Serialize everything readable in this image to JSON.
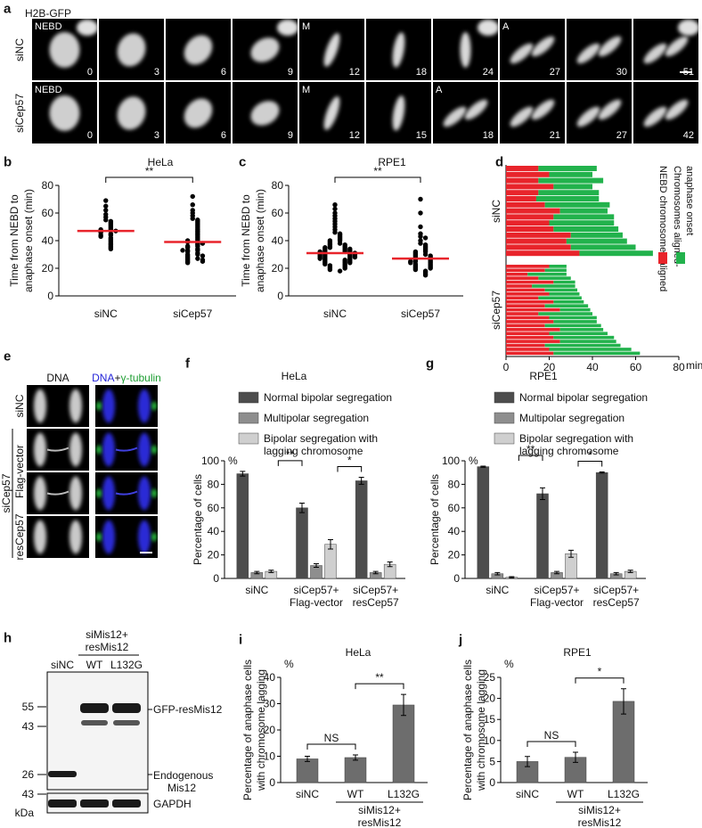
{
  "panel_a": {
    "label": "a",
    "marker": "H2B-GFP",
    "rows": [
      {
        "name": "siNC",
        "frames": [
          {
            "time": 0,
            "tag": "NEBD"
          },
          {
            "time": 3
          },
          {
            "time": 6
          },
          {
            "time": 9
          },
          {
            "time": 12,
            "tag": "M"
          },
          {
            "time": 18
          },
          {
            "time": 24
          },
          {
            "time": 27,
            "tag": "A"
          },
          {
            "time": 30
          },
          {
            "time": 51
          }
        ]
      },
      {
        "name": "siCep57",
        "frames": [
          {
            "time": 0,
            "tag": "NEBD"
          },
          {
            "time": 3
          },
          {
            "time": 6
          },
          {
            "time": 9
          },
          {
            "time": 12,
            "tag": "M"
          },
          {
            "time": 15
          },
          {
            "time": 18,
            "tag": "A"
          },
          {
            "time": 21
          },
          {
            "time": 27
          },
          {
            "time": 42
          }
        ]
      }
    ]
  },
  "panel_e": {
    "label": "e",
    "columns": {
      "dna": "DNA",
      "merge": [
        "DNA",
        "+",
        "γ-tubulin"
      ]
    },
    "rows": [
      "siNC",
      "Flag-vector",
      "resCep57"
    ],
    "group": "siCep57"
  },
  "panel_h": {
    "label": "h",
    "treatment": [
      "siMis12+",
      "resMis12"
    ],
    "lanes": [
      "siNC",
      "WT",
      "L132G"
    ],
    "markers": [
      55,
      43,
      26,
      43
    ],
    "unit": "kDa",
    "bands": [
      "GFP-resMis12",
      [
        "Endogenous",
        "Mis12"
      ],
      "GAPDH"
    ]
  },
  "chart_data": [
    {
      "panel": "b",
      "type": "strip",
      "title": "HeLa",
      "ylabel": [
        "Time from NEBD to",
        "anaphase onset (min)"
      ],
      "categories": [
        "siNC",
        "siCep57"
      ],
      "color": "#000000",
      "mean_color": "#e8242b",
      "values": [
        [
          69,
          65,
          62,
          59,
          57,
          55,
          54,
          53,
          52,
          51,
          50,
          49,
          48,
          48,
          47,
          47,
          46,
          45,
          44,
          44,
          43,
          42,
          41,
          40,
          39,
          38,
          37,
          36,
          35,
          34
        ],
        [
          72,
          66,
          62,
          60,
          58,
          56,
          55,
          54,
          53,
          52,
          51,
          50,
          49,
          48,
          47,
          46,
          45,
          44,
          43,
          42,
          41,
          40,
          40,
          39,
          38,
          37,
          36,
          36,
          35,
          34,
          33,
          33,
          32,
          31,
          30,
          30,
          29,
          29,
          28,
          27,
          27,
          26,
          26,
          25,
          25,
          24,
          33,
          38
        ]
      ],
      "means": [
        47,
        39
      ],
      "ylim": [
        0,
        80
      ],
      "yticks": [
        0,
        20,
        40,
        60,
        80
      ],
      "annotations": [
        {
          "text": "**"
        }
      ]
    },
    {
      "panel": "c",
      "type": "strip",
      "title": "RPE1",
      "ylabel": [
        "Time from NEBD to",
        "anaphase onset (min)"
      ],
      "categories": [
        "siNC",
        "siCep57"
      ],
      "color": "#000000",
      "mean_color": "#e8242b",
      "values": [
        [
          66,
          63,
          60,
          58,
          56,
          54,
          52,
          50,
          48,
          46,
          45,
          44,
          43,
          42,
          41,
          40,
          40,
          39,
          38,
          38,
          37,
          37,
          36,
          36,
          35,
          35,
          35,
          34,
          34,
          34,
          33,
          33,
          33,
          32,
          32,
          32,
          32,
          31,
          31,
          31,
          31,
          30,
          30,
          30,
          30,
          29,
          29,
          29,
          29,
          28,
          28,
          28,
          28,
          27,
          27,
          27,
          26,
          26,
          26,
          25,
          25,
          25,
          24,
          24,
          24,
          23,
          23,
          22,
          22,
          21,
          21,
          20,
          20,
          19,
          18
        ],
        [
          70,
          60,
          50,
          45,
          43,
          42,
          40,
          38,
          37,
          36,
          35,
          34,
          33,
          32,
          32,
          31,
          30,
          30,
          29,
          29,
          28,
          28,
          27,
          27,
          26,
          26,
          25,
          25,
          25,
          24,
          24,
          23,
          23,
          22,
          22,
          21,
          21,
          20,
          20,
          19,
          18,
          17,
          16,
          15
        ]
      ],
      "means": [
        31,
        27
      ],
      "ylim": [
        0,
        80
      ],
      "yticks": [
        0,
        20,
        40,
        60,
        80
      ],
      "annotations": [
        {
          "text": "**"
        }
      ]
    },
    {
      "panel": "d",
      "type": "barh",
      "xlabel": "min",
      "xlim": [
        0,
        80
      ],
      "xticks": [
        0,
        20,
        40,
        60,
        80
      ],
      "series": [
        {
          "name": [
            "NEBD chromosomes aligned"
          ],
          "color": "#e8242b"
        },
        {
          "name": [
            "Chromosomes aligned-",
            "anaphase onset"
          ],
          "color": "#22b24c"
        }
      ],
      "groups": [
        {
          "name": "siNC",
          "values": [
            [
              15,
              27
            ],
            [
              20,
              20
            ],
            [
              15,
              30
            ],
            [
              22,
              18
            ],
            [
              15,
              28
            ],
            [
              14,
              29
            ],
            [
              18,
              30
            ],
            [
              25,
              22
            ],
            [
              22,
              28
            ],
            [
              20,
              30
            ],
            [
              22,
              30
            ],
            [
              30,
              24
            ],
            [
              28,
              28
            ],
            [
              30,
              30
            ],
            [
              34,
              34
            ]
          ]
        },
        {
          "name": "siCep57",
          "values": [
            [
              20,
              8
            ],
            [
              18,
              10
            ],
            [
              10,
              18
            ],
            [
              15,
              15
            ],
            [
              22,
              10
            ],
            [
              12,
              20
            ],
            [
              18,
              15
            ],
            [
              20,
              14
            ],
            [
              15,
              20
            ],
            [
              22,
              14
            ],
            [
              18,
              20
            ],
            [
              25,
              14
            ],
            [
              15,
              25
            ],
            [
              20,
              22
            ],
            [
              22,
              20
            ],
            [
              18,
              26
            ],
            [
              25,
              20
            ],
            [
              20,
              27
            ],
            [
              22,
              28
            ],
            [
              25,
              26
            ],
            [
              18,
              35
            ],
            [
              20,
              38
            ],
            [
              22,
              40
            ]
          ]
        }
      ]
    },
    {
      "panel": "f",
      "type": "bar",
      "title": "HeLa",
      "unit": "%",
      "ylabel": [
        "Percentage of cells"
      ],
      "categories": [
        [
          "siNC"
        ],
        [
          "siCep57+",
          "Flag-vector"
        ],
        [
          "siCep57+",
          "resCep57"
        ]
      ],
      "series": [
        {
          "name": [
            "Normal bipolar segregation"
          ],
          "color": "#4d4d4d",
          "values": [
            89,
            60,
            83
          ],
          "errors": [
            2,
            4,
            3
          ]
        },
        {
          "name": [
            "Multipolar segregation"
          ],
          "color": "#8e8e8e",
          "values": [
            5,
            11,
            5
          ],
          "errors": [
            1,
            1.5,
            1
          ]
        },
        {
          "name": [
            "Bipolar segregation with",
            "lagging chromosome"
          ],
          "color": "#cfcfcf",
          "values": [
            6,
            29,
            12
          ],
          "errors": [
            1,
            4,
            2
          ]
        }
      ],
      "ylim": [
        0,
        100
      ],
      "yticks": [
        0,
        20,
        40,
        60,
        80,
        100
      ],
      "annotations": [
        {
          "text": "**"
        },
        {
          "text": "*"
        }
      ]
    },
    {
      "panel": "g",
      "type": "bar",
      "title": "RPE1",
      "unit": "%",
      "ylabel": [
        "Percentage of cells"
      ],
      "categories": [
        [
          "siNC"
        ],
        [
          "siCep57+",
          "Flag-vector"
        ],
        [
          "siCep57+",
          "resCep57"
        ]
      ],
      "series": [
        {
          "name": [
            "Normal bipolar segregation"
          ],
          "color": "#4d4d4d",
          "values": [
            95,
            72,
            90
          ],
          "errors": [
            0.5,
            5,
            0.5
          ]
        },
        {
          "name": [
            "Multipolar segregation"
          ],
          "color": "#8e8e8e",
          "values": [
            4,
            5,
            4
          ],
          "errors": [
            1,
            1,
            1
          ]
        },
        {
          "name": [
            "Bipolar segregation with",
            "lagging chromosome"
          ],
          "color": "#cfcfcf",
          "values": [
            1,
            21,
            6
          ],
          "errors": [
            0.5,
            3,
            1
          ]
        }
      ],
      "ylim": [
        0,
        100
      ],
      "yticks": [
        0,
        20,
        40,
        60,
        80,
        100
      ],
      "annotations": [
        {
          "text": "**"
        },
        {
          "text": "*"
        }
      ]
    },
    {
      "panel": "i",
      "type": "bar",
      "title": "HeLa",
      "unit": "%",
      "ylabel": [
        "Percentage of anaphase cells",
        "with chromosome lagging"
      ],
      "categories": [
        "siNC",
        "WT",
        "L132G"
      ],
      "values": [
        9,
        9.5,
        29.5
      ],
      "errors": [
        1,
        1,
        4
      ],
      "color": "#6d6d6d",
      "ylim": [
        0,
        40
      ],
      "yticks": [
        0,
        10,
        20,
        30,
        40
      ],
      "annotations": [
        {
          "text": "NS"
        },
        {
          "text": "**"
        }
      ],
      "group_label": [
        "siMis12+",
        "resMis12"
      ]
    },
    {
      "panel": "j",
      "type": "bar",
      "title": "RPE1",
      "unit": "%",
      "ylabel": [
        "Percentage of anaphase cells",
        "with chromosome lagging"
      ],
      "categories": [
        "siNC",
        "WT",
        "L132G"
      ],
      "values": [
        5,
        6,
        19.3
      ],
      "errors": [
        1.2,
        1.2,
        3
      ],
      "color": "#6d6d6d",
      "ylim": [
        0,
        25
      ],
      "yticks": [
        0,
        5,
        10,
        15,
        20,
        25
      ],
      "annotations": [
        {
          "text": "NS"
        },
        {
          "text": "*"
        }
      ],
      "group_label": [
        "siMis12+",
        "resMis12"
      ]
    }
  ]
}
